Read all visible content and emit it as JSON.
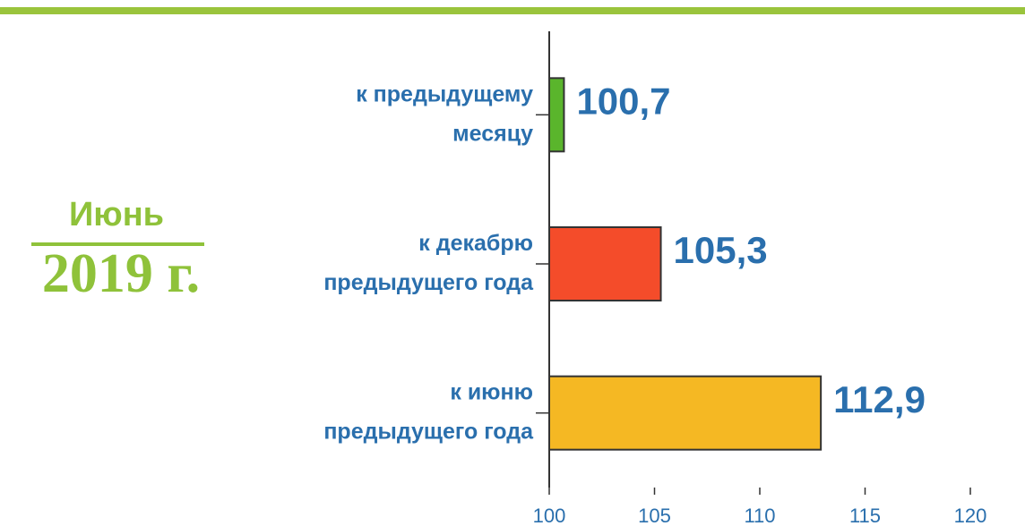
{
  "chart_data": {
    "type": "bar",
    "orientation": "horizontal",
    "title": "Июнь",
    "subtitle": "2019 г.",
    "categories": [
      "к предыдущему\nмесяцу",
      "к декабрю\nпредыдущего года",
      "к июню\nпредыдущего года"
    ],
    "values": [
      100.7,
      105.3,
      112.9
    ],
    "value_labels": [
      "100,7",
      "105,3",
      "112,9"
    ],
    "colors": [
      "#5ab52c",
      "#f44c2a",
      "#f5b823"
    ],
    "xlim": [
      100,
      120
    ],
    "xticks": [
      100,
      105,
      110,
      115,
      120
    ]
  }
}
